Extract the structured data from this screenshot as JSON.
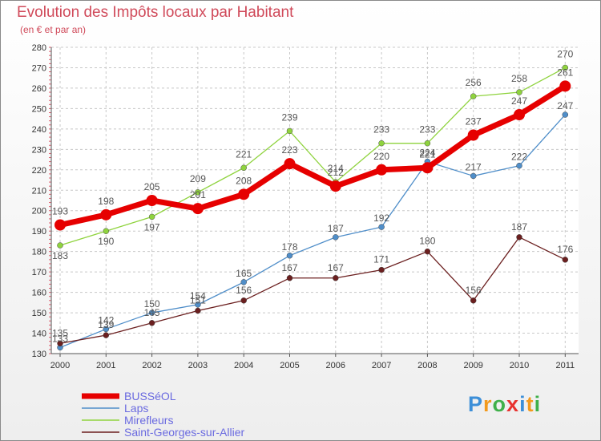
{
  "title": "Evolution des Impôts locaux par Habitant",
  "subtitle": "(en € et par an)",
  "logo": [
    "P",
    "r",
    "o",
    "x",
    "i",
    "t",
    "i"
  ],
  "logo_colors": [
    "#3d8fd8",
    "#f39a1c",
    "#3fb04a",
    "#e8322e",
    "#3d8fd8",
    "#f39a1c",
    "#3fb04a"
  ],
  "chart_data": {
    "type": "line",
    "title": "Evolution des Impôts locaux par Habitant",
    "subtitle": "(en € et par an)",
    "x": [
      "2000",
      "2001",
      "2002",
      "2003",
      "2004",
      "2005",
      "2006",
      "2007",
      "2008",
      "2009",
      "2010",
      "2011"
    ],
    "ylim": [
      130,
      280
    ],
    "yticks": [
      130,
      140,
      150,
      160,
      170,
      180,
      190,
      200,
      210,
      220,
      230,
      240,
      250,
      260,
      270,
      280
    ],
    "grid": true,
    "legend": "bottom-left",
    "series": [
      {
        "name": "BUSSéOL",
        "color": "#e60000",
        "values": [
          193,
          198,
          205,
          201,
          208,
          223,
          212,
          220,
          221,
          237,
          247,
          261
        ]
      },
      {
        "name": "Laps",
        "color": "#4f8ec9",
        "values": [
          133,
          142,
          150,
          154,
          165,
          178,
          187,
          192,
          224,
          217,
          222,
          247
        ]
      },
      {
        "name": "Mirefleurs",
        "color": "#8fd33e",
        "values": [
          183,
          190,
          197,
          209,
          221,
          239,
          214,
          233,
          233,
          256,
          258,
          270
        ]
      },
      {
        "name": "Saint-Georges-sur-Allier",
        "color": "#6b1f1f",
        "values": [
          135,
          139,
          145,
          151,
          156,
          167,
          167,
          171,
          180,
          156,
          187,
          176
        ]
      }
    ]
  }
}
